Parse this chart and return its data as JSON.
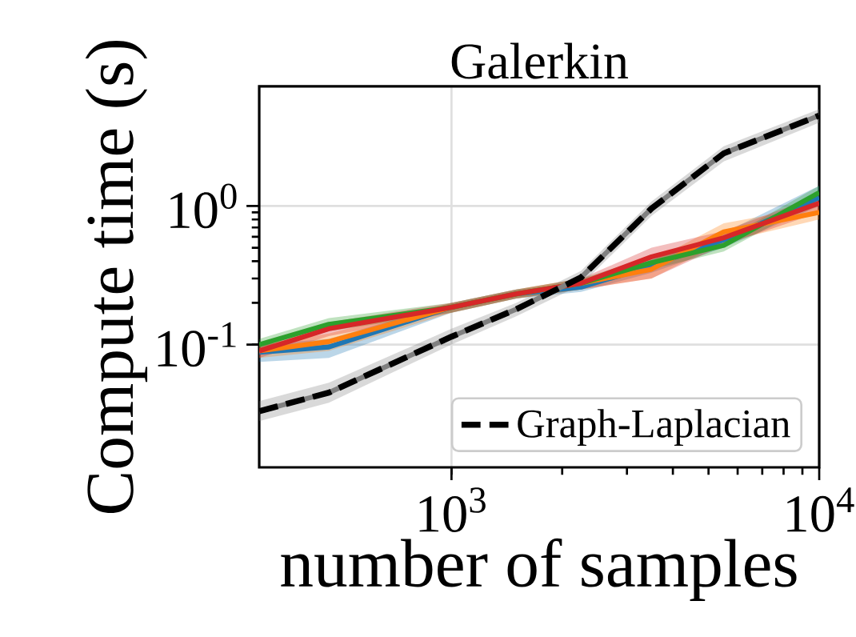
{
  "chart_data": {
    "type": "line",
    "title": "Galerkin",
    "xlabel": "number of samples",
    "ylabel": "Compute time (s)",
    "log": "xy",
    "grid": true,
    "legend": "bottom right",
    "xlim": [
      300,
      10000
    ],
    "ylim": [
      0.013,
      7.3
    ],
    "xticks": [
      {
        "value": 1000,
        "label": "10$^{3}$"
      },
      {
        "value": 10000,
        "label": "10$^{4}$"
      }
    ],
    "yticks": [
      {
        "value": 0.1,
        "label": "10$^{-1}$"
      },
      {
        "value": 1,
        "label": "10$^{0}$"
      }
    ],
    "x": [
      300,
      464,
      1000,
      1500,
      2250,
      3500,
      5500,
      10000
    ],
    "series": [
      {
        "color": "#1f77b4",
        "values": [
          0.088,
          0.096,
          0.186,
          0.232,
          0.26,
          0.37,
          0.57,
          1.15
        ],
        "lower": [
          0.075,
          0.08,
          0.17,
          0.215,
          0.24,
          0.33,
          0.5,
          1.0
        ],
        "upper": [
          0.1,
          0.11,
          0.2,
          0.25,
          0.28,
          0.41,
          0.64,
          1.4
        ]
      },
      {
        "color": "#ff7f0e",
        "values": [
          0.09,
          0.105,
          0.186,
          0.232,
          0.277,
          0.35,
          0.65,
          0.9
        ],
        "lower": [
          0.08,
          0.09,
          0.17,
          0.215,
          0.25,
          0.3,
          0.55,
          0.8
        ],
        "upper": [
          0.1,
          0.12,
          0.2,
          0.25,
          0.3,
          0.4,
          0.75,
          1.0
        ]
      },
      {
        "color": "#2ca02c",
        "values": [
          0.1,
          0.14,
          0.186,
          0.232,
          0.277,
          0.39,
          0.52,
          1.25
        ],
        "lower": [
          0.09,
          0.125,
          0.17,
          0.215,
          0.25,
          0.35,
          0.47,
          1.1
        ],
        "upper": [
          0.11,
          0.155,
          0.2,
          0.25,
          0.3,
          0.43,
          0.57,
          1.4
        ]
      },
      {
        "color": "#d62728",
        "values": [
          0.09,
          0.13,
          0.186,
          0.232,
          0.277,
          0.43,
          0.59,
          1.05
        ],
        "lower": [
          0.08,
          0.115,
          0.17,
          0.215,
          0.25,
          0.3,
          0.52,
          0.9
        ],
        "upper": [
          0.1,
          0.145,
          0.2,
          0.25,
          0.3,
          0.5,
          0.66,
          1.2
        ]
      },
      {
        "color": "#808080",
        "values": [
          0.033,
          0.045,
          0.114,
          0.18,
          0.305,
          0.96,
          2.4,
          4.5
        ],
        "lower": [
          0.028,
          0.038,
          0.1,
          0.16,
          0.27,
          0.85,
          2.1,
          4.0
        ],
        "upper": [
          0.039,
          0.053,
          0.13,
          0.2,
          0.34,
          1.08,
          2.7,
          5.0
        ]
      },
      {
        "name": "Graph-Laplacian",
        "color": "#000000",
        "line_style": "dashed",
        "values": [
          0.033,
          0.045,
          0.114,
          0.18,
          0.305,
          0.96,
          2.4,
          4.5
        ]
      }
    ]
  }
}
